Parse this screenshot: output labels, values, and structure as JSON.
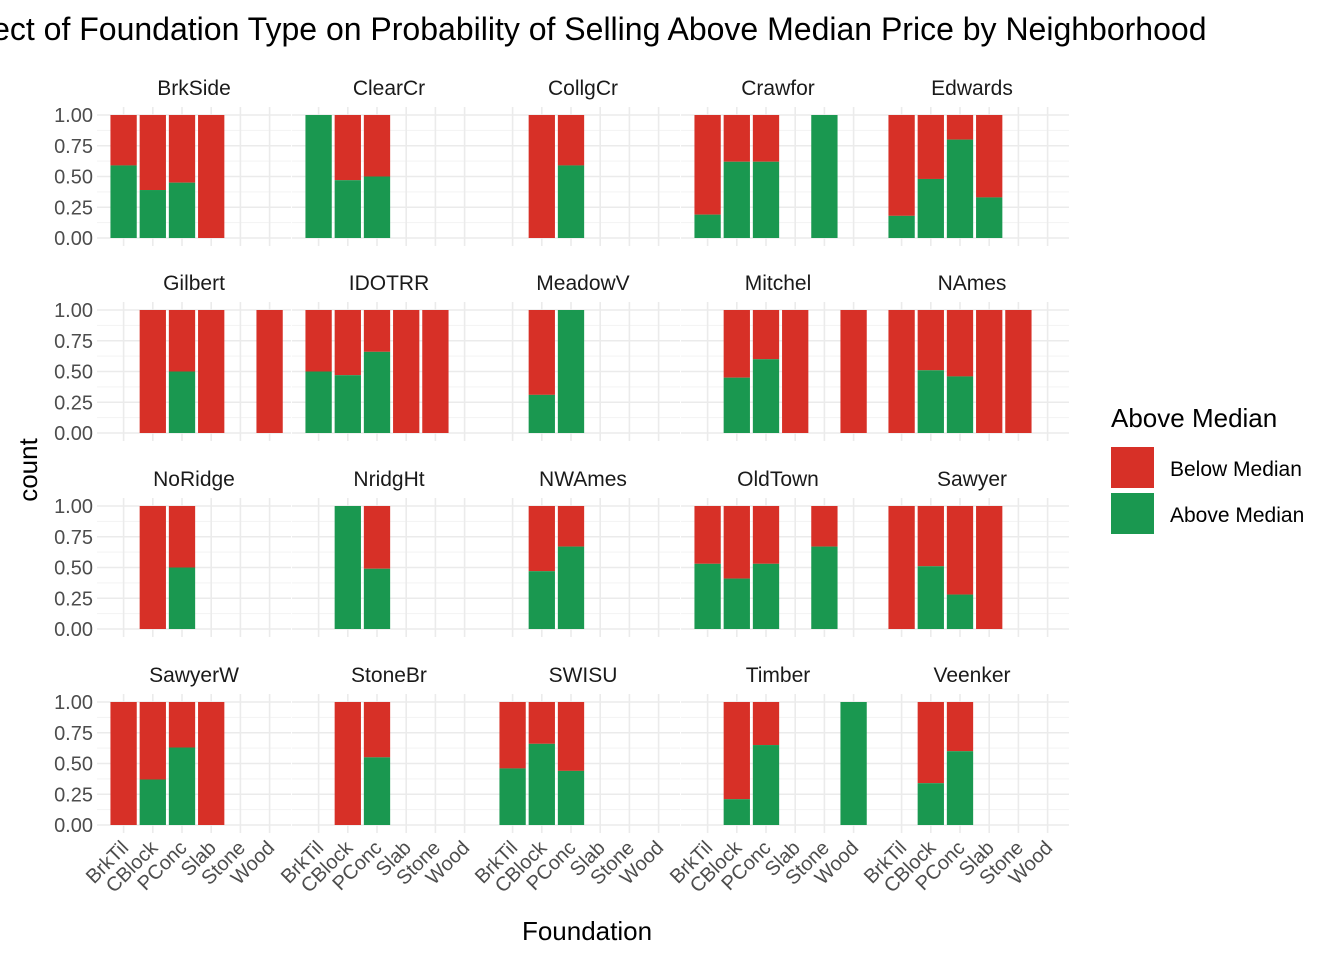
{
  "chart_data": {
    "type": "bar",
    "subtype": "stacked-proportion-facets",
    "title": "Effect of Foundation Type on Probability of Selling Above Median Price by Neighborhood",
    "xlabel": "Foundation",
    "ylabel": "count",
    "ylim": [
      0,
      1
    ],
    "yticks": [
      "0.00",
      "0.25",
      "0.50",
      "0.75",
      "1.00"
    ],
    "categories": [
      "BrkTil",
      "CBlock",
      "PConc",
      "Slab",
      "Stone",
      "Wood"
    ],
    "grid": true,
    "legend": {
      "title": "Above Median",
      "position": "right",
      "items": [
        {
          "label": "Below Median",
          "color": "#d73027"
        },
        {
          "label": "Above Median",
          "color": "#1a9850"
        }
      ]
    },
    "facets": [
      {
        "name": "BrkSide",
        "above": [
          0.59,
          0.39,
          0.45,
          0.0,
          null,
          null
        ]
      },
      {
        "name": "ClearCr",
        "above": [
          1.0,
          0.47,
          0.5,
          null,
          null,
          null
        ]
      },
      {
        "name": "CollgCr",
        "above": [
          null,
          0.0,
          0.59,
          null,
          null,
          null
        ]
      },
      {
        "name": "Crawfor",
        "above": [
          0.19,
          0.62,
          0.62,
          null,
          1.0,
          null
        ]
      },
      {
        "name": "Edwards",
        "above": [
          0.18,
          0.48,
          0.8,
          0.33,
          null,
          null
        ]
      },
      {
        "name": "Gilbert",
        "above": [
          null,
          0.0,
          0.5,
          0.0,
          null,
          0.0
        ]
      },
      {
        "name": "IDOTRR",
        "above": [
          0.5,
          0.47,
          0.66,
          0.0,
          0.0,
          null
        ]
      },
      {
        "name": "MeadowV",
        "above": [
          null,
          0.31,
          1.0,
          null,
          null,
          null
        ]
      },
      {
        "name": "Mitchel",
        "above": [
          null,
          0.45,
          0.6,
          0.0,
          null,
          0.0
        ]
      },
      {
        "name": "NAmes",
        "above": [
          0.0,
          0.51,
          0.46,
          0.0,
          0.0,
          null
        ]
      },
      {
        "name": "NoRidge",
        "above": [
          null,
          0.0,
          0.5,
          null,
          null,
          null
        ]
      },
      {
        "name": "NridgHt",
        "above": [
          null,
          1.0,
          0.49,
          null,
          null,
          null
        ]
      },
      {
        "name": "NWAmes",
        "above": [
          null,
          0.47,
          0.67,
          null,
          null,
          null
        ]
      },
      {
        "name": "OldTown",
        "above": [
          0.53,
          0.41,
          0.53,
          null,
          0.67,
          null
        ]
      },
      {
        "name": "Sawyer",
        "above": [
          0.0,
          0.51,
          0.28,
          0.0,
          null,
          null
        ]
      },
      {
        "name": "SawyerW",
        "above": [
          0.0,
          0.37,
          0.63,
          0.0,
          null,
          null
        ]
      },
      {
        "name": "StoneBr",
        "above": [
          null,
          0.0,
          0.55,
          null,
          null,
          null
        ]
      },
      {
        "name": "SWISU",
        "above": [
          0.46,
          0.66,
          0.44,
          null,
          null,
          null
        ]
      },
      {
        "name": "Timber",
        "above": [
          null,
          0.21,
          0.65,
          null,
          null,
          1.0
        ]
      },
      {
        "name": "Veenker",
        "above": [
          null,
          0.34,
          0.6,
          null,
          null,
          null
        ]
      }
    ]
  }
}
